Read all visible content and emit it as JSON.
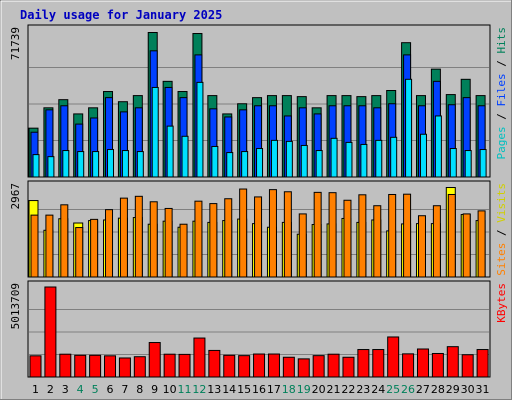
{
  "chart_data": {
    "type": "bar",
    "title": "Daily usage for January 2025",
    "categories": [
      "1",
      "2",
      "3",
      "4",
      "5",
      "6",
      "7",
      "8",
      "9",
      "10",
      "11",
      "12",
      "13",
      "14",
      "15",
      "16",
      "17",
      "18",
      "19",
      "20",
      "21",
      "22",
      "23",
      "24",
      "25",
      "26",
      "27",
      "28",
      "29",
      "30",
      "31"
    ],
    "weekend_days": [
      "4",
      "5",
      "11",
      "12",
      "18",
      "19",
      "25",
      "26"
    ],
    "panels": [
      {
        "name": "pages-files-hits",
        "max_label": "71739",
        "ylim": [
          0,
          71739
        ],
        "series": [
          {
            "name": "Hits",
            "color": "#00805a",
            "values": [
              24000,
              34000,
              38000,
              31000,
              34000,
              42000,
              37000,
              40000,
              71000,
              47000,
              42000,
              70500,
              40000,
              31000,
              36000,
              39000,
              40000,
              40000,
              39500,
              34000,
              40000,
              40000,
              39500,
              40000,
              42500,
              66000,
              40000,
              53000,
              40500,
              48000,
              40000
            ]
          },
          {
            "name": "Files",
            "color": "#0040ff",
            "values": [
              22000,
              33000,
              35000,
              26000,
              29000,
              39000,
              32000,
              34000,
              62000,
              44000,
              39000,
              60000,
              33500,
              29500,
              33000,
              35000,
              35000,
              30000,
              34000,
              31000,
              35000,
              35000,
              35000,
              34000,
              36000,
              60000,
              35000,
              47000,
              35500,
              39000,
              35000
            ]
          },
          {
            "name": "Pages",
            "color": "#00e0ff",
            "values": [
              11000,
              10000,
              13000,
              12500,
              12500,
              13500,
              13000,
              12500,
              44000,
              25000,
              20000,
              46500,
              15000,
              12000,
              12500,
              14000,
              18000,
              17500,
              15500,
              13000,
              19000,
              17000,
              16000,
              18000,
              19500,
              48000,
              21000,
              30000,
              14000,
              13000,
              13500
            ]
          }
        ]
      },
      {
        "name": "sites-visits",
        "max_label": "2967",
        "ylim": [
          0,
          2967
        ],
        "series": [
          {
            "name": "Visits",
            "color": "#ffff00",
            "values": [
              2520,
              1540,
              1920,
              1780,
              1860,
              1880,
              1940,
              1960,
              1740,
              1840,
              1640,
              1840,
              1800,
              1860,
              1910,
              1760,
              1640,
              1800,
              1410,
              1730,
              1750,
              1930,
              1800,
              1880,
              1520,
              1750,
              1760,
              1760,
              2950,
              2060,
              1860
            ]
          },
          {
            "name": "Sites",
            "color": "#ff8000",
            "values": [
              2040,
              2040,
              2380,
              1630,
              1900,
              2220,
              2600,
              2660,
              2480,
              2260,
              1740,
              2500,
              2420,
              2580,
              2900,
              2640,
              2880,
              2810,
              2080,
              2790,
              2780,
              2530,
              2710,
              2350,
              2720,
              2730,
              2020,
              2350,
              2720,
              2080,
              2180
            ]
          }
        ]
      },
      {
        "name": "kbytes",
        "max_label": "5013709",
        "ylim": [
          0,
          5013709
        ],
        "series": [
          {
            "name": "KBytes",
            "color": "#ff0000",
            "values": [
              1180000,
              5013709,
              1270000,
              1210000,
              1210000,
              1180000,
              1060000,
              1130000,
              1920000,
              1270000,
              1260000,
              2170000,
              1480000,
              1210000,
              1190000,
              1280000,
              1280000,
              1100000,
              1010000,
              1190000,
              1270000,
              1100000,
              1530000,
              1530000,
              2230000,
              1290000,
              1560000,
              1310000,
              1690000,
              1240000,
              1530000
            ]
          }
        ]
      }
    ],
    "side_labels": [
      {
        "panel": 0,
        "parts": [
          {
            "text": "Pages",
            "color": "#00c0c0"
          },
          {
            "text": " / ",
            "color": "#000000"
          },
          {
            "text": "Files",
            "color": "#0040ff"
          },
          {
            "text": " / ",
            "color": "#000000"
          },
          {
            "text": "Hits",
            "color": "#00805a"
          }
        ]
      },
      {
        "panel": 1,
        "parts": [
          {
            "text": "Sites",
            "color": "#ff8000"
          },
          {
            "text": " / ",
            "color": "#000000"
          },
          {
            "text": "Visits",
            "color": "#d0d000"
          }
        ]
      },
      {
        "panel": 2,
        "parts": [
          {
            "text": "KBytes",
            "color": "#ff0000"
          }
        ]
      }
    ],
    "grid": true,
    "colors": {
      "background": "#c0c0c0",
      "title": "#0000c0",
      "weekday_label": "#000000",
      "weekend_label": "#00805a"
    }
  }
}
